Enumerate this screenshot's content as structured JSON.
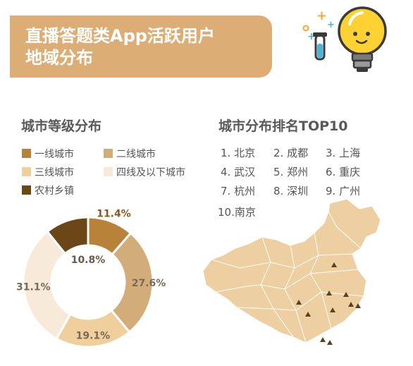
{
  "header": {
    "title_line1": "直播答题类App活跃用户",
    "title_line2": "地域分布"
  },
  "colors": {
    "header_bg": "#dcad75",
    "tier1": "#b9823a",
    "tier2": "#d3ad79",
    "tier3": "#efcf9c",
    "tier4": "#f7ead8",
    "rural": "#6b4718",
    "map_fill": "#edcfa1",
    "marker": "#5a4221"
  },
  "left_section": {
    "title": "城市等级分布"
  },
  "right_section": {
    "title": "城市分布排名TOP10",
    "ranking": [
      "1. 北京",
      "2. 成都",
      "3. 上海",
      "4. 武汉",
      "5. 郑州",
      "6. 重庆",
      "7. 杭州",
      "8. 深圳",
      "9. 广州",
      "10.南京"
    ]
  },
  "chart_data": {
    "type": "pie",
    "donut": true,
    "categories": [
      "一线城市",
      "二线城市",
      "三线城市",
      "四线及以下城市",
      "农村乡镇"
    ],
    "values": [
      11.4,
      27.6,
      19.1,
      31.1,
      10.8
    ],
    "value_labels": [
      "11.4%",
      "27.6%",
      "19.1%",
      "31.1%",
      "10.8%"
    ],
    "legend_placement": "top-left"
  }
}
